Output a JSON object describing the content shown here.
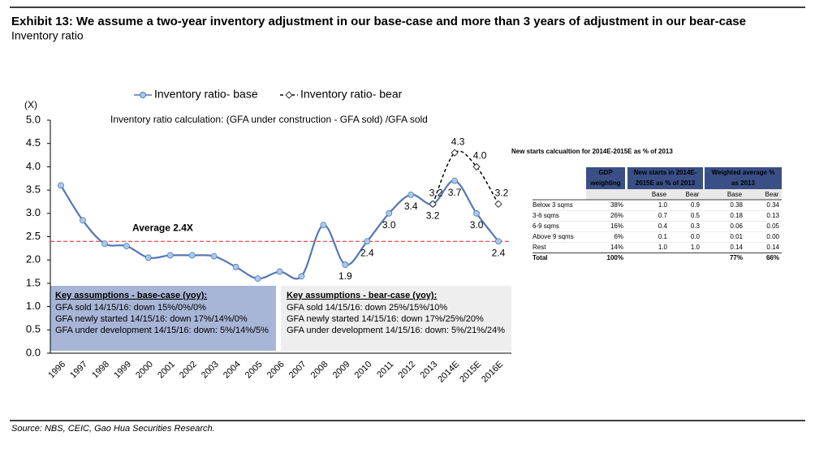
{
  "header": {
    "title": "Exhibit 13: We assume a two-year inventory adjustment in our base-case and more than 3 years of adjustment in our bear-case",
    "subtitle": "Inventory ratio"
  },
  "chart_data": {
    "type": "line",
    "y_label": "(X)",
    "annotation": "Inventory ratio calculation:  (GFA under construction - GFA sold) /GFA sold",
    "categories": [
      "1996",
      "1997",
      "1998",
      "1999",
      "2000",
      "2001",
      "2002",
      "2003",
      "2004",
      "2005",
      "2006",
      "2007",
      "2008",
      "2009",
      "2010",
      "2011",
      "2012",
      "2013",
      "2014E",
      "2015E",
      "2016E"
    ],
    "series": [
      {
        "name": "Inventory ratio- base",
        "color": "#5577b5",
        "marker_color": "#a9cbea",
        "values": [
          3.6,
          2.85,
          2.35,
          2.3,
          2.05,
          2.1,
          2.1,
          2.08,
          1.85,
          1.6,
          1.75,
          1.65,
          2.75,
          1.9,
          2.4,
          3.0,
          3.4,
          3.2,
          3.7,
          3.0,
          2.4
        ],
        "value_labels": [
          null,
          null,
          null,
          null,
          null,
          null,
          null,
          null,
          null,
          null,
          null,
          null,
          null,
          "1.9",
          "2.4",
          "3.0",
          "3.4",
          "3.2",
          "3.7",
          "3.0",
          "2.4"
        ]
      },
      {
        "name": "Inventory ratio- bear",
        "color": "#000000",
        "dashed": true,
        "values": [
          null,
          null,
          null,
          null,
          null,
          null,
          null,
          null,
          null,
          null,
          null,
          null,
          null,
          null,
          null,
          null,
          null,
          3.2,
          4.3,
          4.0,
          3.2
        ],
        "value_labels": [
          null,
          null,
          null,
          null,
          null,
          null,
          null,
          null,
          null,
          null,
          null,
          null,
          null,
          null,
          null,
          null,
          null,
          "3.2",
          "4.3",
          "4.0",
          "3.2"
        ]
      }
    ],
    "average": {
      "value": 2.4,
      "label": "Average 2.4X",
      "color": "#e02020"
    },
    "ylim": [
      0,
      5
    ],
    "yticks": [
      {
        "value": 0,
        "label": "0.0"
      },
      {
        "value": 0.5,
        "label": "0.5"
      },
      {
        "value": 1,
        "label": "1.0"
      },
      {
        "value": 1.5,
        "label": "1.5"
      },
      {
        "value": 2,
        "label": "2.0"
      },
      {
        "value": 2.5,
        "label": "2.5"
      },
      {
        "value": 3,
        "label": "3.0"
      },
      {
        "value": 3.5,
        "label": "3.5"
      },
      {
        "value": 4,
        "label": "4.0"
      },
      {
        "value": 4.5,
        "label": "4.5"
      },
      {
        "value": 5,
        "label": "5.0"
      }
    ],
    "grid": false,
    "legend": "top"
  },
  "boxes": [
    {
      "title": "Key assumptions - base-case (yoy):",
      "lines": [
        "GFA sold 14/15/16: down 15%/0%/0%",
        "GFA newly started 14/15/16: down 17%/14%/0%",
        "GFA under development 14/15/16: down: 5%/14%/5%"
      ]
    },
    {
      "title": "Key assumptions - bear-case (yoy):",
      "lines": [
        "GFA sold 14/15/16: down 25%/15%/10%",
        "GFA newly started 14/15/16: down 17%/25%/20%",
        "GFA under development  14/15/16: down: 5%/21%/24%"
      ]
    }
  ],
  "table": {
    "title": "New starts calcualtion for 2014E-2015E as % of 2013",
    "headers": [
      [
        "GDP",
        "weighting"
      ],
      [
        "New starts in 2014E-",
        "2015E as % of 2013"
      ],
      [
        "Weighted average %",
        "as 2013"
      ]
    ],
    "subheaders": [
      "Base",
      "Bear",
      "Base",
      "Bear"
    ],
    "rows": [
      [
        "Below 3 sqms",
        "38%",
        "1.0",
        "0.9",
        "0.38",
        "0.34"
      ],
      [
        "3-6 sqms",
        "26%",
        "0.7",
        "0.5",
        "0.18",
        "0.13"
      ],
      [
        "6-9 sqms",
        "16%",
        "0.4",
        "0.3",
        "0.06",
        "0.05"
      ],
      [
        "Above 9 sqms",
        "6%",
        "0.1",
        "0.0",
        "0.01",
        "0.00"
      ],
      [
        "Rest",
        "14%",
        "1.0",
        "1.0",
        "0.14",
        "0.14"
      ],
      [
        "Total",
        "100%",
        null,
        null,
        "77%",
        "66%"
      ]
    ]
  },
  "source": "Source: NBS, CEIC, Gao Hua Securities Research."
}
